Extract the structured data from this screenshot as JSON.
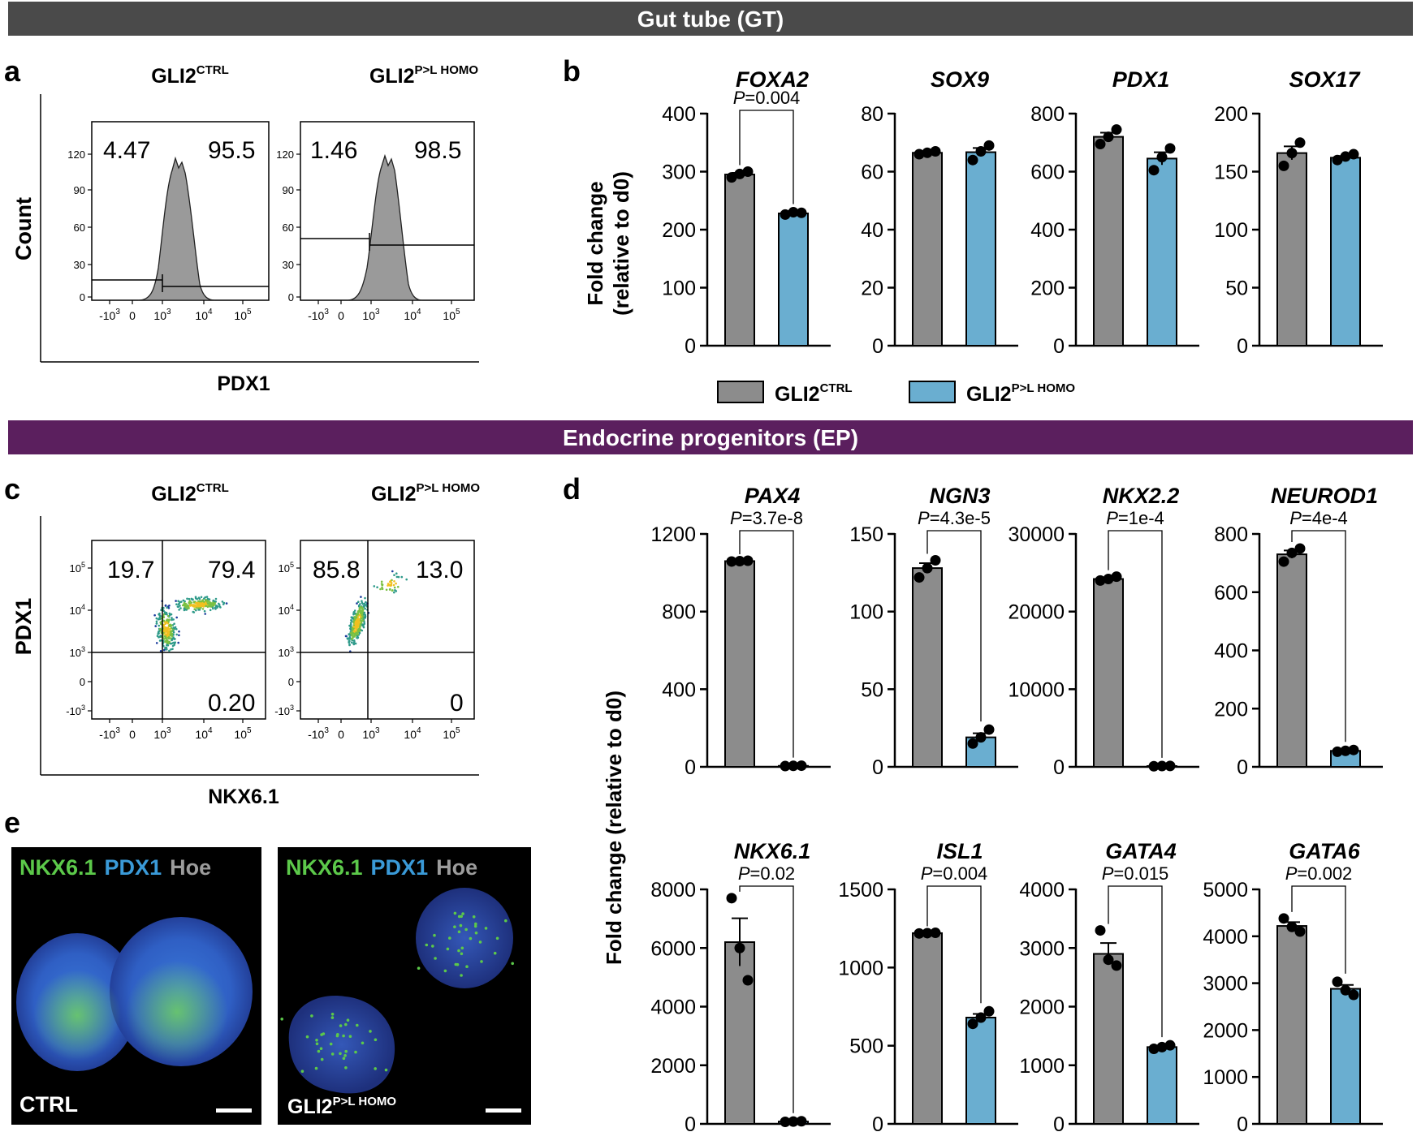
{
  "colors": {
    "ctrl": "#8c8c8c",
    "homo": "#6aaed0",
    "band_gt": "#4a4a4a",
    "band_ep": "#5b1f5e",
    "micro_blue": "#2f5ec0",
    "micro_green": "#5cc94a"
  },
  "sections": {
    "gt": "Gut tube (GT)",
    "ep": "Endocrine progenitors (EP)"
  },
  "panel_letters": {
    "a": "a",
    "b": "b",
    "c": "c",
    "d": "d",
    "e": "e"
  },
  "genotype": {
    "ctrl_base": "GLI2",
    "ctrl_sup": "CTRL",
    "homo_base": "GLI2",
    "homo_sup": "P>L HOMO"
  },
  "panel_a": {
    "ylabel": "Count",
    "xlabel": "PDX1",
    "yticks": [
      "120",
      "90",
      "60",
      "30",
      "0"
    ],
    "xticks": [
      "-10",
      "0",
      "10",
      "10",
      "10"
    ],
    "xtick_exp": [
      "3",
      "",
      "3",
      "4",
      "5"
    ],
    "ctrl": {
      "left_pct": "4.47",
      "right_pct": "95.5"
    },
    "homo": {
      "left_pct": "1.46",
      "right_pct": "98.5"
    }
  },
  "panel_c": {
    "ylabel": "PDX1",
    "xlabel": "NKX6.1",
    "yticks": [
      "10",
      "10",
      "10",
      "0",
      "-10"
    ],
    "ytick_exp": [
      "5",
      "4",
      "3",
      "",
      "3"
    ],
    "xticks": [
      "-10",
      "0",
      "10",
      "10",
      "10"
    ],
    "xtick_exp": [
      "3",
      "",
      "3",
      "4",
      "5"
    ],
    "ctrl": {
      "q_ul": "19.7",
      "q_ur": "79.4",
      "q_lr": "0.20"
    },
    "homo": {
      "q_ul": "85.8",
      "q_ur": "13.0",
      "q_lr": "0"
    }
  },
  "panel_e": {
    "stain_1": "NKX6.1",
    "stain_2": "PDX1",
    "stain_3": "Hoe",
    "ctrl_label": "CTRL",
    "homo_label_base": "GLI2",
    "homo_label_sup": "P>L HOMO"
  },
  "legend": {
    "ctrl_base": "GLI2",
    "ctrl_sup": "CTRL",
    "homo_base": "GLI2",
    "homo_sup": "P>L HOMO"
  },
  "chart_data": [
    {
      "panel": "b",
      "type": "bar",
      "title": "FOXA2",
      "ylabel": "Fold change (relative to d0)",
      "categories": [
        "GLI2CTRL",
        "GLI2P>L HOMO"
      ],
      "values": [
        295,
        228
      ],
      "points": [
        [
          290,
          300,
          296
        ],
        [
          226,
          229,
          230
        ]
      ],
      "ylim": [
        0,
        400
      ],
      "ticks": [
        0,
        100,
        200,
        300,
        400
      ],
      "pvalue": "P=0.004"
    },
    {
      "panel": "b",
      "type": "bar",
      "title": "SOX9",
      "categories": [
        "GLI2CTRL",
        "GLI2P>L HOMO"
      ],
      "values": [
        66.5,
        66.7
      ],
      "points": [
        [
          66,
          67,
          66.5
        ],
        [
          64,
          69,
          67
        ]
      ],
      "ylim": [
        0,
        80
      ],
      "ticks": [
        0,
        20,
        40,
        60,
        80
      ],
      "pvalue": ""
    },
    {
      "panel": "b",
      "type": "bar",
      "title": "PDX1",
      "categories": [
        "GLI2CTRL",
        "GLI2P>L HOMO"
      ],
      "values": [
        720,
        645
      ],
      "points": [
        [
          695,
          745,
          720
        ],
        [
          605,
          680,
          650
        ]
      ],
      "ylim": [
        0,
        800
      ],
      "ticks": [
        0,
        200,
        400,
        600,
        800
      ],
      "pvalue": ""
    },
    {
      "panel": "b",
      "type": "bar",
      "title": "SOX17",
      "categories": [
        "GLI2CTRL",
        "GLI2P>L HOMO"
      ],
      "values": [
        166,
        162
      ],
      "points": [
        [
          155,
          175,
          166
        ],
        [
          160,
          165,
          163
        ]
      ],
      "ylim": [
        0,
        200
      ],
      "ticks": [
        0,
        50,
        100,
        150,
        200
      ],
      "pvalue": ""
    },
    {
      "panel": "d",
      "type": "bar",
      "title": "PAX4",
      "ylabel": "Fold change (relative to d0)",
      "categories": [
        "GLI2CTRL",
        "GLI2P>L HOMO"
      ],
      "values": [
        1060,
        5
      ],
      "points": [
        [
          1058,
          1062,
          1060
        ],
        [
          4,
          6,
          5
        ]
      ],
      "ylim": [
        0,
        1200
      ],
      "ticks": [
        0,
        400,
        800,
        1200
      ],
      "pvalue": "P=3.7e-8"
    },
    {
      "panel": "d",
      "type": "bar",
      "title": "NGN3",
      "categories": [
        "GLI2CTRL",
        "GLI2P>L HOMO"
      ],
      "values": [
        128,
        19
      ],
      "points": [
        [
          122,
          133,
          128
        ],
        [
          15,
          24,
          19
        ]
      ],
      "ylim": [
        0,
        150
      ],
      "ticks": [
        0,
        50,
        100,
        150
      ],
      "pvalue": "P=4.3e-5"
    },
    {
      "panel": "d",
      "type": "bar",
      "title": "NKX2.2",
      "categories": [
        "GLI2CTRL",
        "GLI2P>L HOMO"
      ],
      "values": [
        24200,
        100
      ],
      "points": [
        [
          24000,
          24500,
          24200
        ],
        [
          80,
          120,
          100
        ]
      ],
      "ylim": [
        0,
        30000
      ],
      "ticks": [
        0,
        10000,
        20000,
        30000
      ],
      "pvalue": "P=1e-4"
    },
    {
      "panel": "d",
      "type": "bar",
      "title": "NEUROD1",
      "categories": [
        "GLI2CTRL",
        "GLI2P>L HOMO"
      ],
      "values": [
        730,
        55
      ],
      "points": [
        [
          705,
          750,
          735
        ],
        [
          52,
          58,
          55
        ]
      ],
      "ylim": [
        0,
        800
      ],
      "ticks": [
        0,
        200,
        400,
        600,
        800
      ],
      "pvalue": "P=4e-4"
    },
    {
      "panel": "d",
      "type": "bar",
      "title": "NKX6.1",
      "categories": [
        "GLI2CTRL",
        "GLI2P>L HOMO"
      ],
      "values": [
        6200,
        80
      ],
      "points": [
        [
          7700,
          4900,
          6000
        ],
        [
          70,
          90,
          80
        ]
      ],
      "ylim": [
        0,
        8000
      ],
      "ticks": [
        0,
        2000,
        4000,
        6000,
        8000
      ],
      "pvalue": "P=0.02"
    },
    {
      "panel": "d",
      "type": "bar",
      "title": "ISL1",
      "categories": [
        "GLI2CTRL",
        "GLI2P>L HOMO"
      ],
      "values": [
        1220,
        680
      ],
      "points": [
        [
          1218,
          1222,
          1220
        ],
        [
          640,
          720,
          680
        ]
      ],
      "ylim": [
        0,
        1500
      ],
      "ticks": [
        0,
        500,
        1000,
        1500
      ],
      "pvalue": "P=0.004"
    },
    {
      "panel": "d",
      "type": "bar",
      "title": "GATA4",
      "categories": [
        "GLI2CTRL",
        "GLI2P>L HOMO"
      ],
      "values": [
        2900,
        1310
      ],
      "points": [
        [
          3300,
          2700,
          2800
        ],
        [
          1280,
          1340,
          1310
        ]
      ],
      "ylim": [
        0,
        4000
      ],
      "ticks": [
        0,
        1000,
        2000,
        3000,
        4000
      ],
      "pvalue": "P=0.015"
    },
    {
      "panel": "d",
      "type": "bar",
      "title": "GATA6",
      "categories": [
        "GLI2CTRL",
        "GLI2P>L HOMO"
      ],
      "values": [
        4220,
        2880
      ],
      "points": [
        [
          4380,
          4100,
          4200
        ],
        [
          3030,
          2750,
          2850
        ]
      ],
      "ylim": [
        0,
        5000
      ],
      "ticks": [
        0,
        1000,
        2000,
        3000,
        4000,
        5000
      ],
      "pvalue": "P=0.002"
    }
  ]
}
